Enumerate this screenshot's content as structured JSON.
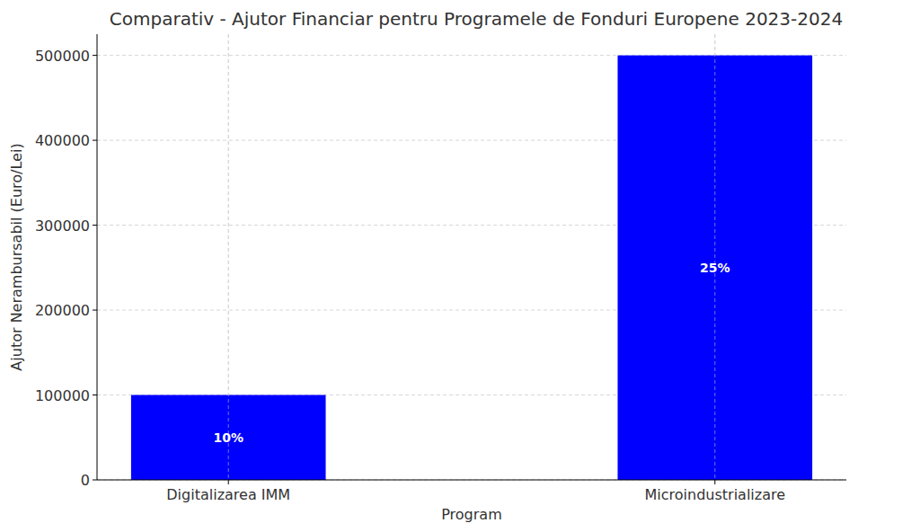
{
  "chart_data": {
    "type": "bar",
    "title": "Comparativ - Ajutor Financiar pentru Programele de Fonduri Europene 2023-2024",
    "x_label": "Program",
    "y_label": "Ajutor Nerambursabil (Euro/Lei)",
    "categories": [
      "Digitalizarea IMM",
      "Microindustrializare"
    ],
    "values": [
      100000,
      500000
    ],
    "annotations": [
      "10%",
      "25%"
    ],
    "color": "#0000ff",
    "ylim": [
      0,
      525000
    ],
    "yticks": [
      0,
      100000,
      200000,
      300000,
      400000,
      500000
    ],
    "grid": true
  }
}
